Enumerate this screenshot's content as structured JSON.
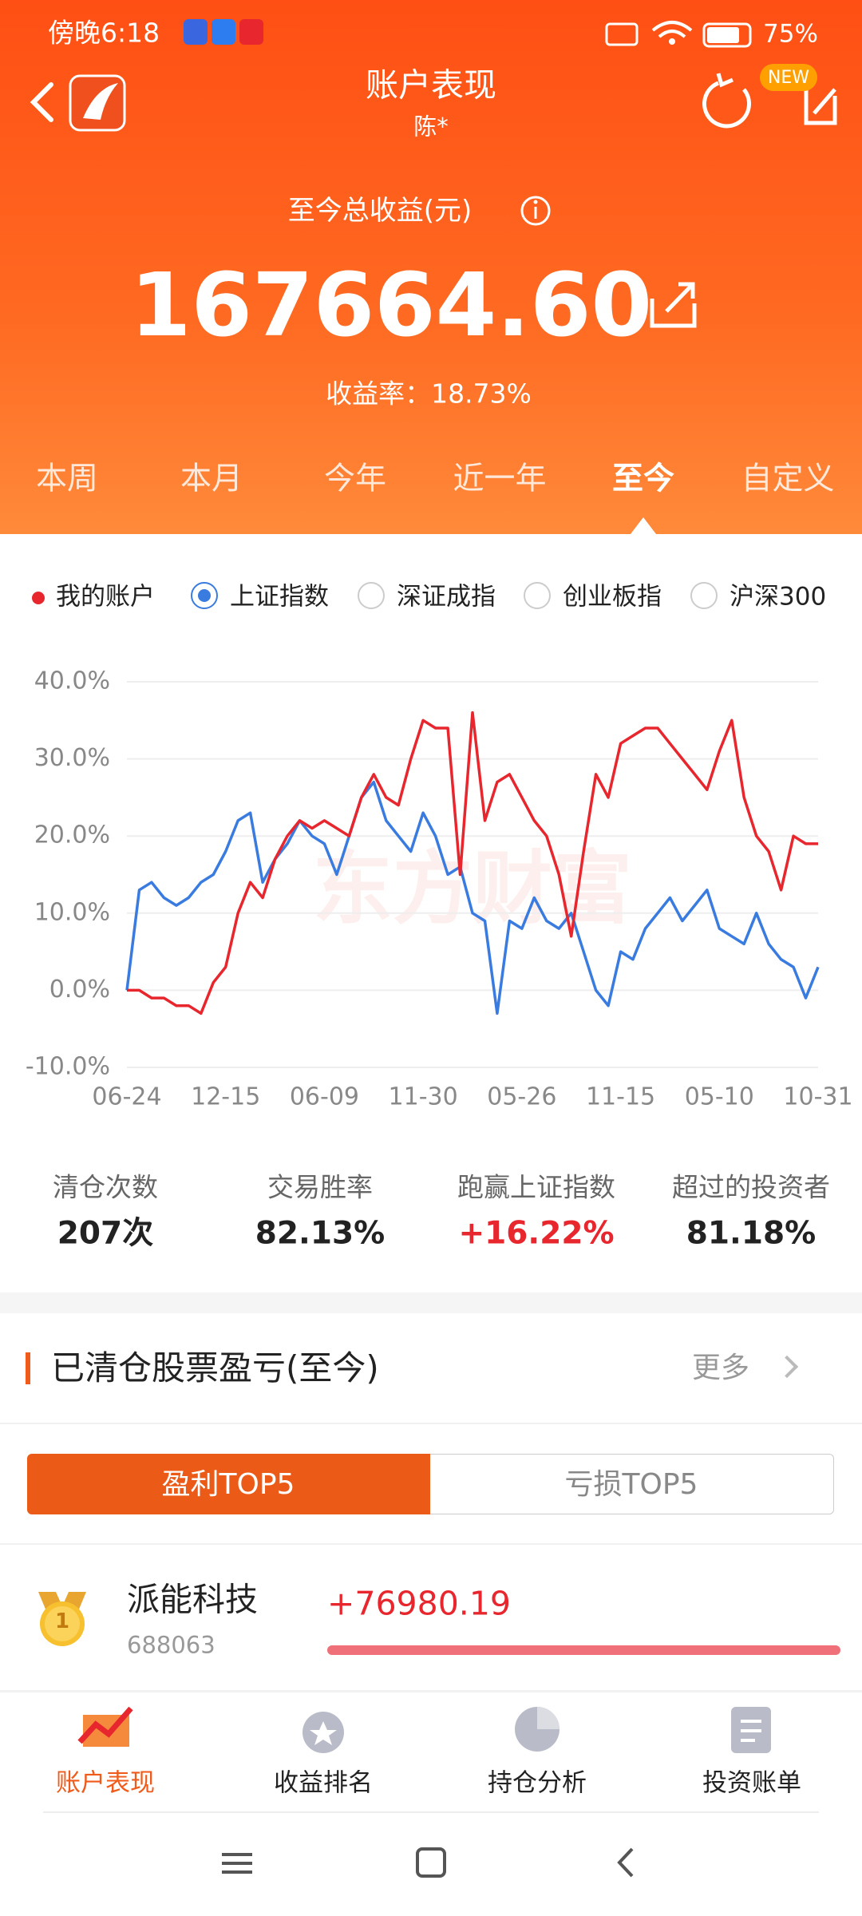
{
  "status_bar": {
    "time": "傍晚6:18",
    "battery": "75%"
  },
  "header": {
    "title": "账户表现",
    "subtitle": "陈*",
    "badge": "NEW"
  },
  "summary": {
    "label": "至今总收益(元)",
    "total": "167664.60",
    "rate": "收益率：18.73%"
  },
  "tabs": [
    "本周",
    "本月",
    "今年",
    "近一年",
    "至今",
    "自定义"
  ],
  "active_tab": 4,
  "benchmarks": [
    "深证成指",
    "创业板指",
    "沪深300"
  ],
  "chart_data": {
    "type": "line",
    "watermark": "东方财富",
    "categories": [
      "06-24",
      null,
      null,
      null,
      null,
      null,
      null,
      null,
      "12-15",
      null,
      null,
      null,
      null,
      null,
      null,
      null,
      "06-09",
      null,
      null,
      null,
      null,
      null,
      null,
      null,
      "11-30",
      null,
      null,
      null,
      null,
      null,
      null,
      null,
      "05-26",
      null,
      null,
      null,
      null,
      null,
      null,
      null,
      "11-15",
      null,
      null,
      null,
      null,
      null,
      null,
      null,
      "05-10",
      null,
      null,
      null,
      null,
      null,
      null,
      null,
      "10-31"
    ],
    "series": [
      {
        "name": "我的账户",
        "color": "#e8262e",
        "values": [
          0,
          0,
          -1,
          -1,
          -2,
          -2,
          -3,
          1,
          3,
          10,
          14,
          12,
          17,
          20,
          22,
          21,
          22,
          21,
          20,
          25,
          28,
          25,
          24,
          30,
          35,
          34,
          34,
          15,
          36,
          22,
          27,
          28,
          25,
          22,
          20,
          15,
          7,
          18,
          28,
          25,
          32,
          33,
          34,
          34,
          32,
          30,
          28,
          26,
          31,
          35,
          25,
          20,
          18,
          13,
          20,
          19,
          19
        ]
      },
      {
        "name": "上证指数",
        "color": "#3a7be0",
        "values": [
          0,
          13,
          14,
          12,
          11,
          12,
          14,
          15,
          18,
          22,
          23,
          14,
          17,
          19,
          22,
          20,
          19,
          15,
          20,
          25,
          27,
          22,
          20,
          18,
          23,
          20,
          15,
          16,
          10,
          9,
          -3,
          9,
          8,
          12,
          9,
          8,
          10,
          5,
          0,
          -2,
          5,
          4,
          8,
          10,
          12,
          9,
          11,
          13,
          8,
          7,
          6,
          10,
          6,
          4,
          3,
          -1,
          3
        ]
      }
    ],
    "ylim": [
      -10,
      40
    ],
    "yticks": [
      {
        "value": -10,
        "label": "-10.0%"
      },
      {
        "value": 0,
        "label": "0.0%"
      },
      {
        "value": 10,
        "label": "10.0%"
      },
      {
        "value": 20,
        "label": "20.0%"
      },
      {
        "value": 30,
        "label": "30.0%"
      },
      {
        "value": 40,
        "label": "40.0%"
      }
    ],
    "grid": true
  },
  "stats": [
    {
      "label": "清仓次数",
      "value": "207次"
    },
    {
      "label": "交易胜率",
      "value": "82.13%"
    },
    {
      "label": "跑赢上证指数",
      "value": "+16.22%"
    },
    {
      "label": "超过的投资者",
      "value": "81.18%"
    }
  ],
  "section": {
    "title": "已清仓股票盈亏(至今)",
    "more": "更多"
  },
  "toggle": [
    "盈利TOP5",
    "亏损TOP5"
  ],
  "list": [
    {
      "rank": "1",
      "name": "派能科技",
      "code": "688063",
      "profit": "+76980.19"
    }
  ],
  "bottom_nav": [
    "账户表现",
    "收益排名",
    "持仓分析",
    "投资账单"
  ]
}
